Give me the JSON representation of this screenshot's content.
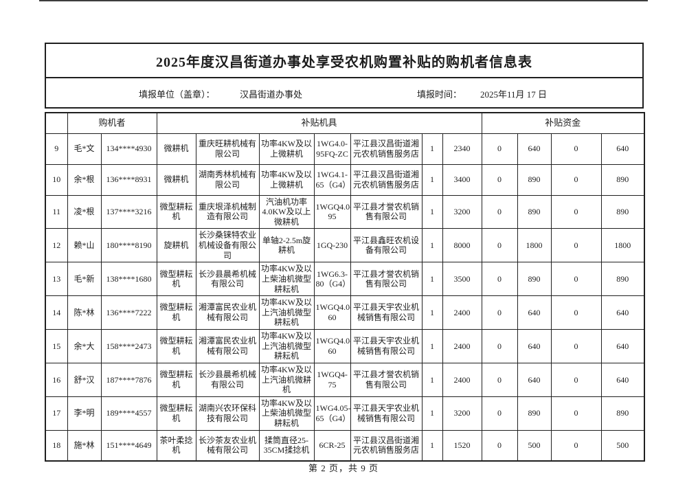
{
  "page": {
    "title": "2025年度汉昌街道办事处享受农机购置补贴的购机者信息表",
    "filing_unit_label": "填报单位（盖章）：",
    "filing_unit_value": "汉昌街道办事处",
    "filing_date_label": "填报时间：",
    "filing_date_value": "2025年11月 17 日",
    "footer_text": "第 2 页，共 9 页"
  },
  "table": {
    "group_headers": {
      "purchaser": "购机者",
      "machine": "补贴机具",
      "funds": "补贴资金"
    },
    "rows": [
      {
        "no": "9",
        "name": "毛*文",
        "phone": "134****4930",
        "type": "微耕机",
        "manufacturer": "重庆旺耕机械有限公司",
        "spec": "功率4KW及以上微耕机",
        "model": "1WG4.0-95FQ-ZC",
        "dealer": "平江县汉昌街道湘元农机销售服务店",
        "qty": "1",
        "price": "2340",
        "f1": "0",
        "f2": "640",
        "f3": "0",
        "f4": "640"
      },
      {
        "no": "10",
        "name": "余*根",
        "phone": "136****8931",
        "type": "微耕机",
        "manufacturer": "湖南秀林机械有限公司",
        "spec": "功率4KW及以上微耕机",
        "model": "1WG4.1-65（G4）",
        "dealer": "平江县汉昌街道湘元农机销售服务店",
        "qty": "1",
        "price": "3400",
        "f1": "0",
        "f2": "890",
        "f3": "0",
        "f4": "890"
      },
      {
        "no": "11",
        "name": "凌*根",
        "phone": "137****3216",
        "type": "微型耕耘机",
        "manufacturer": "重庆垠泽机械制造有限公司",
        "spec": "汽油机功率4.0KW及以上微耕机",
        "model": "1WGQ4.0-95",
        "dealer": "平江县才誉农机销售有限公司",
        "qty": "1",
        "price": "3200",
        "f1": "0",
        "f2": "890",
        "f3": "0",
        "f4": "890"
      },
      {
        "no": "12",
        "name": "赖*山",
        "phone": "180****8190",
        "type": "旋耕机",
        "manufacturer": "长沙桑铼特农业机械设备有限公司",
        "spec": "单轴2-2.5m旋耕机",
        "model": "1GQ-230",
        "dealer": "平江县鑫旺农机设备有限公司",
        "qty": "1",
        "price": "8000",
        "f1": "0",
        "f2": "1800",
        "f3": "0",
        "f4": "1800"
      },
      {
        "no": "13",
        "name": "毛*新",
        "phone": "138****1680",
        "type": "微型耕耘机",
        "manufacturer": "长沙县晨希机械有限公司",
        "spec": "功率4KW及以上柴油机微型耕耘机",
        "model": "1WG6.3-80（G4）",
        "dealer": "平江县才誉农机销售有限公司",
        "qty": "1",
        "price": "3500",
        "f1": "0",
        "f2": "890",
        "f3": "0",
        "f4": "890"
      },
      {
        "no": "14",
        "name": "陈*林",
        "phone": "136****7222",
        "type": "微型耕耘机",
        "manufacturer": "湘潭富民农业机械有限公司",
        "spec": "功率4KW及以上汽油机微型耕耘机",
        "model": "1WGQ4.0-60",
        "dealer": "平江县天宇农业机械销售有限公司",
        "qty": "1",
        "price": "2400",
        "f1": "0",
        "f2": "640",
        "f3": "0",
        "f4": "640"
      },
      {
        "no": "15",
        "name": "余*大",
        "phone": "158****2473",
        "type": "微型耕耘机",
        "manufacturer": "湘潭富民农业机械有限公司",
        "spec": "功率4KW及以上汽油机微型耕耘机",
        "model": "1WGQ4.0-60",
        "dealer": "平江县天宇农业机械销售有限公司",
        "qty": "1",
        "price": "2400",
        "f1": "0",
        "f2": "640",
        "f3": "0",
        "f4": "640"
      },
      {
        "no": "16",
        "name": "舒*汉",
        "phone": "187****7876",
        "type": "微型耕耘机",
        "manufacturer": "长沙县晨希机械有限公司",
        "spec": "功率4KW及以上汽油机微耕机",
        "model": "1WGQ4-75",
        "dealer": "平江县才誉农机销售有限公司",
        "qty": "1",
        "price": "2400",
        "f1": "0",
        "f2": "640",
        "f3": "0",
        "f4": "640"
      },
      {
        "no": "17",
        "name": "李*明",
        "phone": "189****4557",
        "type": "微型耕耘机",
        "manufacturer": "湖南兴农环保科技有限公司",
        "spec": "功率4KW及以上柴油机微型耕耘机",
        "model": "1WG4.05-65（G4）",
        "dealer": "平江县天宇农业机械销售有限公司",
        "qty": "1",
        "price": "3200",
        "f1": "0",
        "f2": "890",
        "f3": "0",
        "f4": "890"
      },
      {
        "no": "18",
        "name": "施*林",
        "phone": "151****4649",
        "type": "茶叶柔捻机",
        "manufacturer": "长沙茶友农业机械有限公司",
        "spec": "揉筒直径25-35CM揉捻机",
        "model": "6CR-25",
        "dealer": "平江县汉昌街道湘元农机销售服务店",
        "qty": "1",
        "price": "1520",
        "f1": "0",
        "f2": "500",
        "f3": "0",
        "f4": "500"
      }
    ]
  }
}
